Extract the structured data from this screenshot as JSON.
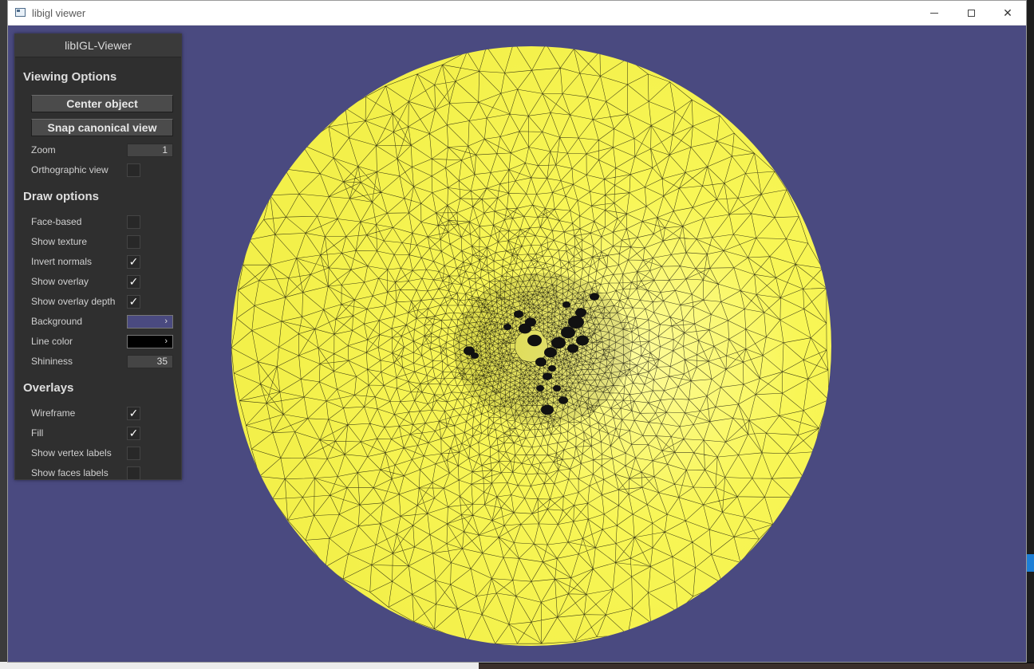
{
  "window": {
    "title": "libigl viewer"
  },
  "panel": {
    "title": "libIGL-Viewer",
    "viewing": {
      "heading": "Viewing Options",
      "center_button": "Center object",
      "snap_button": "Snap canonical view",
      "zoom_label": "Zoom",
      "zoom_value": "1",
      "ortho_label": "Orthographic view",
      "ortho_checked": false
    },
    "draw": {
      "heading": "Draw options",
      "face_based_label": "Face-based",
      "face_based_checked": false,
      "show_texture_label": "Show texture",
      "show_texture_checked": false,
      "invert_normals_label": "Invert normals",
      "invert_normals_checked": true,
      "show_overlay_label": "Show overlay",
      "show_overlay_checked": true,
      "show_overlay_depth_label": "Show overlay depth",
      "show_overlay_depth_checked": true,
      "background_label": "Background",
      "background_color": "#4a4a80",
      "line_color_label": "Line color",
      "line_color": "#000000",
      "shininess_label": "Shininess",
      "shininess_value": "35"
    },
    "overlays": {
      "heading": "Overlays",
      "wireframe_label": "Wireframe",
      "wireframe_checked": true,
      "fill_label": "Fill",
      "fill_checked": true,
      "vertex_labels_label": "Show vertex labels",
      "vertex_labels_checked": false,
      "faces_labels_label": "Show faces labels",
      "faces_labels_checked": false
    },
    "arrow_glyph": "›",
    "check_glyph": "✓"
  },
  "mesh": {
    "fill_color": "#f6f44a",
    "line_color": "#000000",
    "background": "#4a4a80"
  }
}
